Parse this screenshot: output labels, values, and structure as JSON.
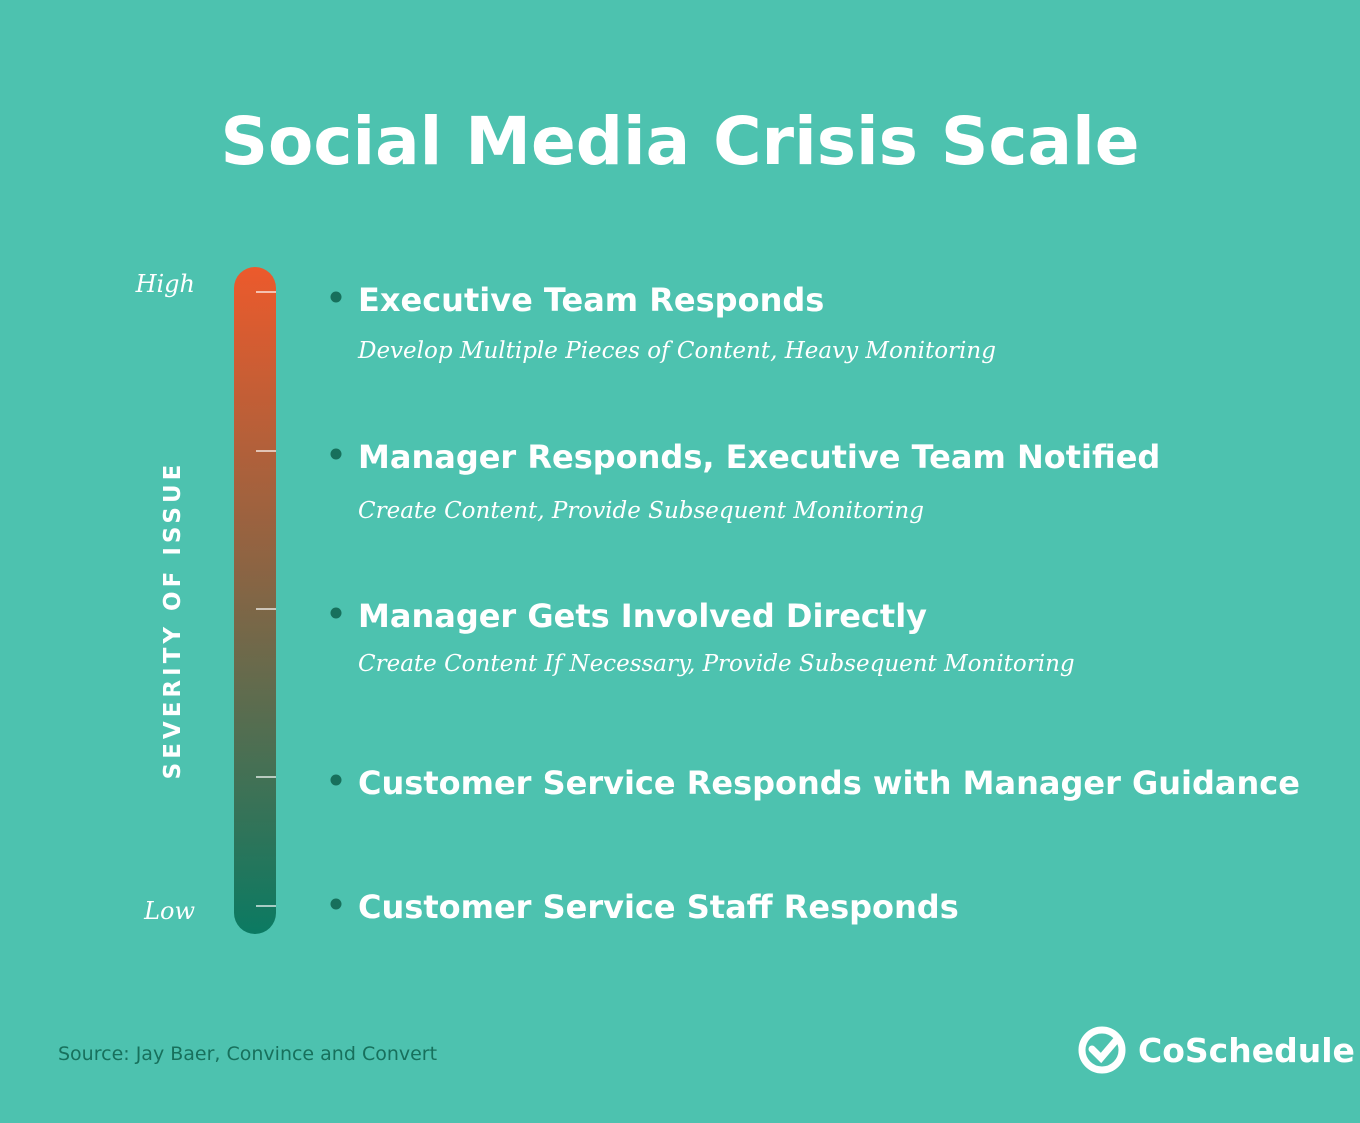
{
  "header": {
    "title": "Social Media Crisis Scale"
  },
  "scale": {
    "high": "High",
    "low": "Low",
    "axis_label": "SEVERITY OF ISSUE"
  },
  "items": [
    {
      "heading": "Executive Team Responds",
      "detail": "Develop Multiple Pieces of Content, Heavy Monitoring"
    },
    {
      "heading": "Manager Responds, Executive Team Notified",
      "detail": "Create Content, Provide Subsequent Monitoring"
    },
    {
      "heading": "Manager Gets Involved Directly",
      "detail": "Create Content If Necessary, Provide Subsequent Monitoring"
    },
    {
      "heading": "Customer Service Responds with Manager Guidance"
    },
    {
      "heading": "Customer Service Staff Responds"
    }
  ],
  "footer": {
    "source": "Source: Jay Baer, Convince and Convert",
    "brand": "CoSchedule"
  }
}
